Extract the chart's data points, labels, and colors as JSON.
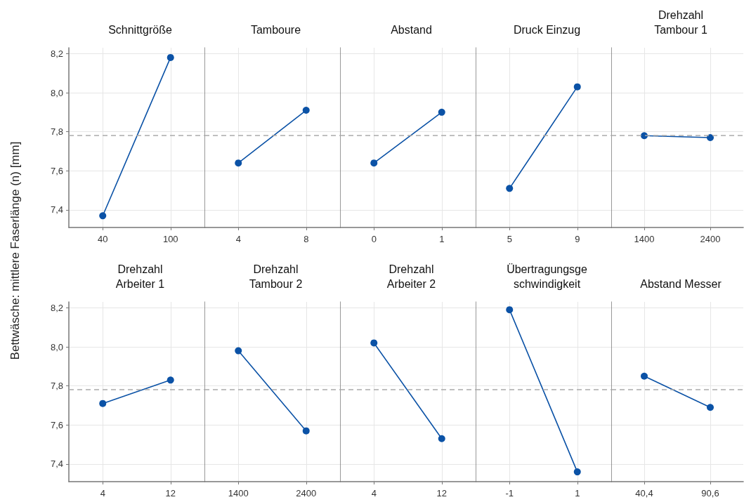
{
  "chart_data": [
    {
      "type": "line",
      "title": "Schnittgröße",
      "ylabel": "Bettwäsche: mittlere Faserlänge (n) [mm]",
      "categories": [
        "40",
        "100"
      ],
      "values": [
        7.37,
        8.18
      ],
      "color": "#0b52a6",
      "ylim": [
        7.31,
        8.23
      ],
      "yticks": [
        {
          "value": 7.4,
          "label": "7,4"
        },
        {
          "value": 7.6,
          "label": "7,6"
        },
        {
          "value": 7.8,
          "label": "7,8"
        },
        {
          "value": 8.0,
          "label": "8,0"
        },
        {
          "value": 8.2,
          "label": "8,2"
        }
      ],
      "grid": true,
      "marker": "circle",
      "ref_lines": [
        {
          "axis": "y",
          "value": 7.78,
          "color": "#aaaaaa",
          "line_style": "dashed"
        }
      ]
    },
    {
      "type": "line",
      "title": "Tamboure",
      "categories": [
        "4",
        "8"
      ],
      "values": [
        7.64,
        7.91
      ],
      "color": "#0b52a6",
      "ylim": [
        7.31,
        8.23
      ],
      "yticks": [
        7.4,
        7.6,
        7.8,
        8.0,
        8.2
      ],
      "grid": true,
      "marker": "circle",
      "tick_labels": "x",
      "ref_lines": [
        {
          "axis": "y",
          "value": 7.78,
          "color": "#aaaaaa",
          "line_style": "dashed"
        }
      ]
    },
    {
      "type": "line",
      "title": "Abstand",
      "categories": [
        "0",
        "1"
      ],
      "values": [
        7.64,
        7.9
      ],
      "color": "#0b52a6",
      "ylim": [
        7.31,
        8.23
      ],
      "yticks": [
        7.4,
        7.6,
        7.8,
        8.0,
        8.2
      ],
      "grid": true,
      "marker": "circle",
      "tick_labels": "x",
      "ref_lines": [
        {
          "axis": "y",
          "value": 7.78,
          "color": "#aaaaaa",
          "line_style": "dashed"
        }
      ]
    },
    {
      "type": "line",
      "title": "Druck Einzug",
      "categories": [
        "5",
        "9"
      ],
      "values": [
        7.51,
        8.03
      ],
      "color": "#0b52a6",
      "ylim": [
        7.31,
        8.23
      ],
      "yticks": [
        7.4,
        7.6,
        7.8,
        8.0,
        8.2
      ],
      "grid": true,
      "marker": "circle",
      "tick_labels": "x",
      "ref_lines": [
        {
          "axis": "y",
          "value": 7.78,
          "color": "#aaaaaa",
          "line_style": "dashed"
        }
      ]
    },
    {
      "type": "line",
      "title": "Drehzahl\nTambour 1",
      "categories": [
        "1400",
        "2400"
      ],
      "values": [
        7.78,
        7.77
      ],
      "color": "#0b52a6",
      "ylim": [
        7.31,
        8.23
      ],
      "yticks": [
        7.4,
        7.6,
        7.8,
        8.0,
        8.2
      ],
      "grid": true,
      "marker": "circle",
      "tick_labels": "x",
      "ref_lines": [
        {
          "axis": "y",
          "value": 7.78,
          "color": "#aaaaaa",
          "line_style": "dashed"
        }
      ]
    },
    {
      "type": "line",
      "title": "Drehzahl\nArbeiter 1",
      "categories": [
        "4",
        "12"
      ],
      "values": [
        7.71,
        7.83
      ],
      "color": "#0b52a6",
      "ylim": [
        7.31,
        8.23
      ],
      "yticks": [
        {
          "value": 7.4,
          "label": "7,4"
        },
        {
          "value": 7.6,
          "label": "7,6"
        },
        {
          "value": 7.8,
          "label": "7,8"
        },
        {
          "value": 8.0,
          "label": "8,0"
        },
        {
          "value": 8.2,
          "label": "8,2"
        }
      ],
      "grid": true,
      "marker": "circle",
      "ref_lines": [
        {
          "axis": "y",
          "value": 7.78,
          "color": "#aaaaaa",
          "line_style": "dashed"
        }
      ]
    },
    {
      "type": "line",
      "title": "Drehzahl\nTambour 2",
      "categories": [
        "1400",
        "2400"
      ],
      "values": [
        7.98,
        7.57
      ],
      "color": "#0b52a6",
      "ylim": [
        7.31,
        8.23
      ],
      "yticks": [
        7.4,
        7.6,
        7.8,
        8.0,
        8.2
      ],
      "grid": true,
      "marker": "circle",
      "tick_labels": "x",
      "ref_lines": [
        {
          "axis": "y",
          "value": 7.78,
          "color": "#aaaaaa",
          "line_style": "dashed"
        }
      ]
    },
    {
      "type": "line",
      "title": "Drehzahl\nArbeiter 2",
      "categories": [
        "4",
        "12"
      ],
      "values": [
        8.02,
        7.53
      ],
      "color": "#0b52a6",
      "ylim": [
        7.31,
        8.23
      ],
      "yticks": [
        7.4,
        7.6,
        7.8,
        8.0,
        8.2
      ],
      "grid": true,
      "marker": "circle",
      "tick_labels": "x",
      "ref_lines": [
        {
          "axis": "y",
          "value": 7.78,
          "color": "#aaaaaa",
          "line_style": "dashed"
        }
      ]
    },
    {
      "type": "line",
      "title": "Übertragungsge\nschwindigkeit",
      "categories": [
        "-1",
        "1"
      ],
      "values": [
        8.19,
        7.36
      ],
      "color": "#0b52a6",
      "ylim": [
        7.31,
        8.23
      ],
      "yticks": [
        7.4,
        7.6,
        7.8,
        8.0,
        8.2
      ],
      "grid": true,
      "marker": "circle",
      "tick_labels": "x",
      "ref_lines": [
        {
          "axis": "y",
          "value": 7.78,
          "color": "#aaaaaa",
          "line_style": "dashed"
        }
      ]
    },
    {
      "type": "line",
      "title": "Abstand Messer",
      "categories": [
        "40,4",
        "90,6"
      ],
      "values": [
        7.85,
        7.69
      ],
      "color": "#0b52a6",
      "ylim": [
        7.31,
        8.23
      ],
      "yticks": [
        7.4,
        7.6,
        7.8,
        8.0,
        8.2
      ],
      "grid": true,
      "marker": "circle",
      "tick_labels": "x",
      "ref_lines": [
        {
          "axis": "y",
          "value": 7.78,
          "color": "#aaaaaa",
          "line_style": "dashed"
        }
      ]
    }
  ]
}
